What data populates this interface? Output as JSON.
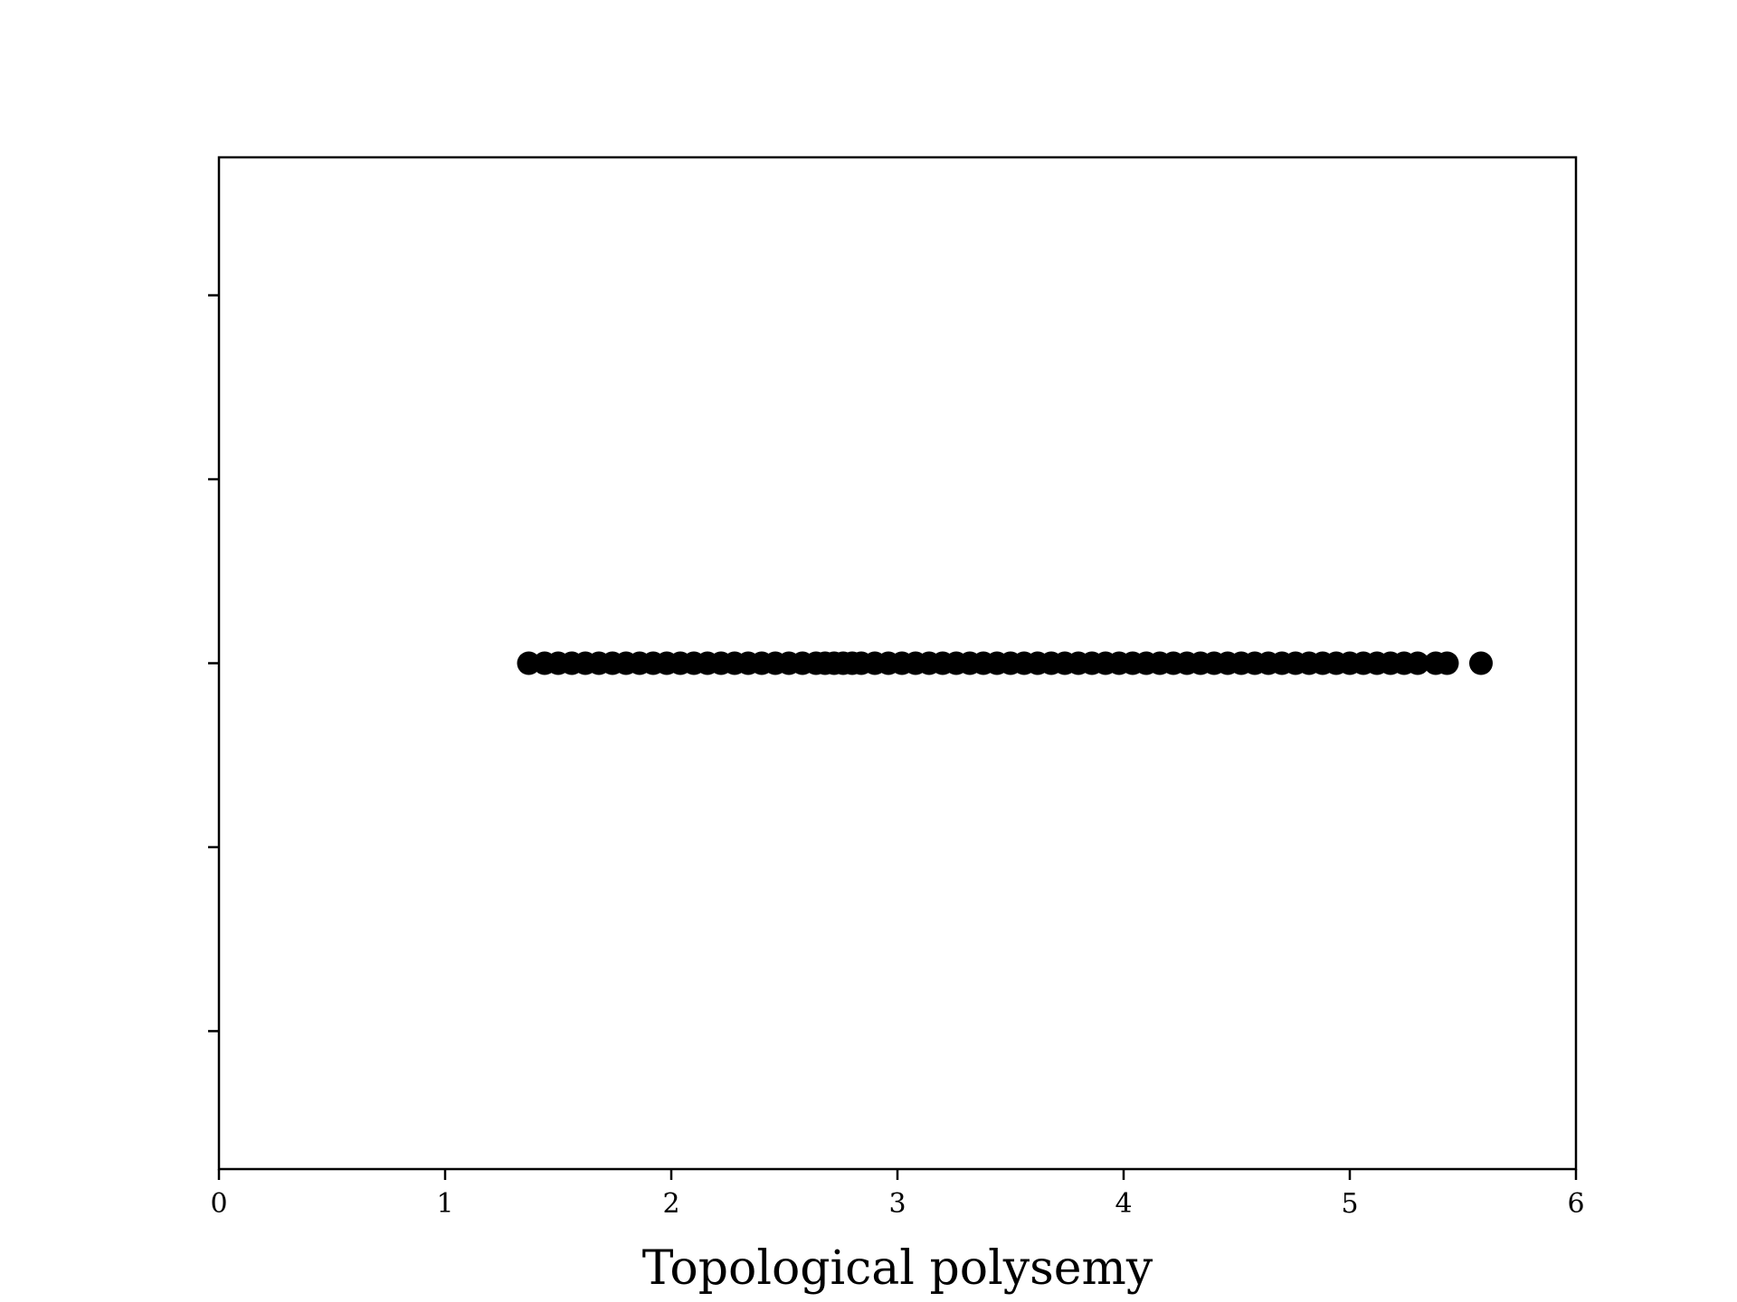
{
  "chart_data": {
    "type": "scatter",
    "title": "",
    "xlabel": "Topological polysemy",
    "ylabel": "",
    "xlim": [
      0,
      6
    ],
    "ylim": [
      -0.055,
      0.055
    ],
    "x_ticks": [
      "0",
      "1",
      "2",
      "3",
      "4",
      "5",
      "6"
    ],
    "y_tick_values": [
      -0.04,
      -0.02,
      0,
      0.02,
      0.04
    ],
    "y_tick_labels_shown": false,
    "grid": false,
    "marker_color": "#000000",
    "series": [
      {
        "y": 0,
        "x": [
          1.37,
          1.44,
          1.5,
          1.56,
          1.62,
          1.68,
          1.74,
          1.8,
          1.86,
          1.92,
          1.98,
          2.04,
          2.1,
          2.16,
          2.22,
          2.28,
          2.34,
          2.4,
          2.46,
          2.52,
          2.58,
          2.64,
          2.68,
          2.72,
          2.76,
          2.8,
          2.84,
          2.9,
          2.96,
          3.02,
          3.08,
          3.14,
          3.2,
          3.26,
          3.32,
          3.38,
          3.44,
          3.5,
          3.56,
          3.62,
          3.68,
          3.74,
          3.8,
          3.86,
          3.92,
          3.98,
          4.04,
          4.1,
          4.16,
          4.22,
          4.28,
          4.34,
          4.4,
          4.46,
          4.52,
          4.58,
          4.64,
          4.7,
          4.76,
          4.82,
          4.88,
          4.94,
          5.0,
          5.06,
          5.12,
          5.18,
          5.24,
          5.3,
          5.38,
          5.43,
          5.58
        ]
      }
    ]
  }
}
